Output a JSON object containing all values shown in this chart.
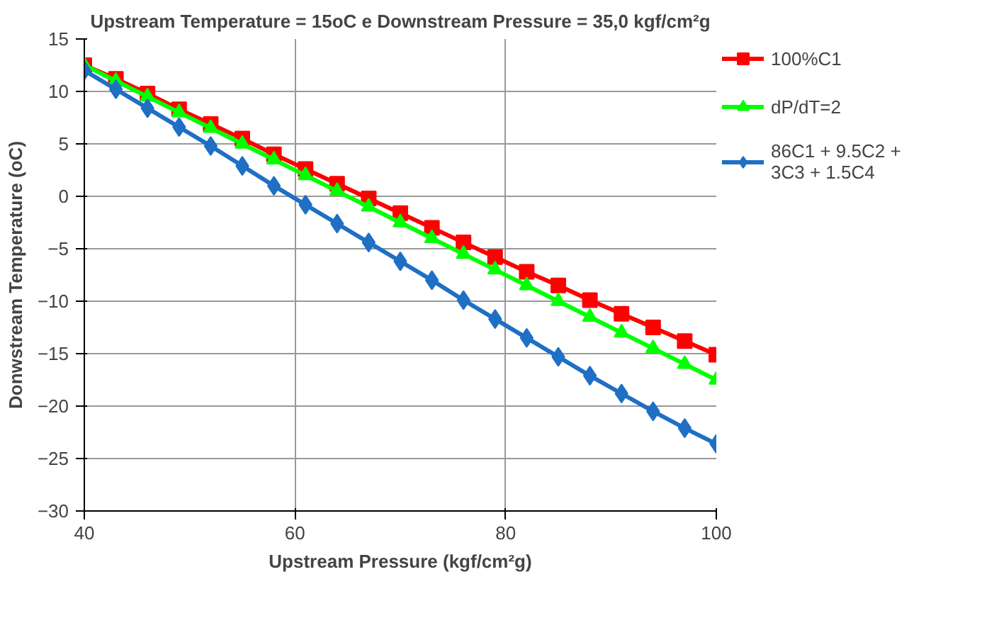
{
  "chart_data": {
    "type": "line",
    "title": "Upstream Temperature = 15oC e Downstream Pressure = 35,0 kgf/cm²g",
    "xlabel": "Upstream Pressure (kgf/cm²g)",
    "ylabel": "Donwstream Temperature (oC)",
    "x": [
      40,
      43,
      46,
      49,
      52,
      55,
      58,
      61,
      64,
      67,
      70,
      73,
      76,
      79,
      82,
      85,
      88,
      91,
      94,
      97,
      100
    ],
    "series": [
      {
        "name": "100%C1",
        "color": "#ff0000",
        "marker": "square",
        "values": [
          12.5,
          11.2,
          9.8,
          8.3,
          6.9,
          5.5,
          4.0,
          2.6,
          1.2,
          -0.2,
          -1.6,
          -3.0,
          -4.4,
          -5.8,
          -7.2,
          -8.5,
          -9.9,
          -11.2,
          -12.5,
          -13.8,
          -15.1
        ]
      },
      {
        "name": "dP/dT=2",
        "color": "#00ff00",
        "marker": "triangle",
        "values": [
          12.5,
          11.0,
          9.5,
          8.0,
          6.5,
          5.0,
          3.5,
          2.0,
          0.5,
          -1.0,
          -2.5,
          -4.0,
          -5.5,
          -7.0,
          -8.5,
          -10.0,
          -11.5,
          -13.0,
          -14.5,
          -16.0,
          -17.5
        ]
      },
      {
        "name": "86C1 + 9.5C2 + 3C3 + 1.5C4",
        "color": "#1f6fc5",
        "marker": "diamond",
        "values": [
          12.0,
          10.2,
          8.4,
          6.6,
          4.8,
          2.9,
          1.0,
          -0.8,
          -2.6,
          -4.4,
          -6.2,
          -8.0,
          -9.9,
          -11.7,
          -13.5,
          -15.3,
          -17.1,
          -18.8,
          -20.5,
          -22.1,
          -23.6
        ]
      }
    ],
    "xlim": [
      40,
      100
    ],
    "xticks": [
      40,
      60,
      80,
      100
    ],
    "ylim": [
      -30,
      15
    ],
    "yticks": [
      -30,
      -25,
      -20,
      -15,
      -10,
      -5,
      0,
      5,
      10,
      15
    ],
    "grid": true,
    "legend": "right",
    "line_style": "solid"
  }
}
